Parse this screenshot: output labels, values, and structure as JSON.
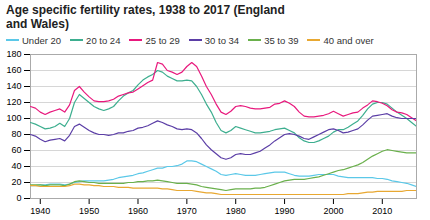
{
  "chart_data": {
    "type": "line",
    "title": "Age specific fertility rates, 1938 to 2017 (England\nand Wales)",
    "x": [
      1938,
      1939,
      1940,
      1941,
      1942,
      1943,
      1944,
      1945,
      1946,
      1947,
      1948,
      1949,
      1950,
      1951,
      1952,
      1953,
      1954,
      1955,
      1956,
      1957,
      1958,
      1959,
      1960,
      1961,
      1962,
      1963,
      1964,
      1965,
      1966,
      1967,
      1968,
      1969,
      1970,
      1971,
      1972,
      1973,
      1974,
      1975,
      1976,
      1977,
      1978,
      1979,
      1980,
      1981,
      1982,
      1983,
      1984,
      1985,
      1986,
      1987,
      1988,
      1989,
      1990,
      1991,
      1992,
      1993,
      1994,
      1995,
      1996,
      1997,
      1998,
      1999,
      2000,
      2001,
      2002,
      2003,
      2004,
      2005,
      2006,
      2007,
      2008,
      2009,
      2010,
      2011,
      2012,
      2013,
      2014,
      2015,
      2016,
      2017
    ],
    "series": [
      {
        "name": "Under 20",
        "color": "#5bc8e8",
        "values": [
          16,
          16,
          17,
          17,
          18,
          18,
          18,
          17,
          18,
          20,
          21,
          22,
          22,
          22,
          22,
          22,
          23,
          24,
          26,
          27,
          28,
          29,
          31,
          32,
          34,
          36,
          38,
          38,
          40,
          40,
          41,
          43,
          47,
          47,
          46,
          43,
          40,
          37,
          34,
          30,
          29,
          30,
          31,
          30,
          29,
          29,
          29,
          30,
          31,
          32,
          33,
          33,
          33,
          31,
          29,
          28,
          28,
          28,
          29,
          30,
          30,
          30,
          30,
          28,
          27,
          26,
          26,
          26,
          26,
          26,
          26,
          25,
          25,
          24,
          22,
          21,
          20,
          19,
          17,
          15
        ]
      },
      {
        "name": "20 to 24",
        "color": "#3dae8f",
        "values": [
          95,
          93,
          90,
          87,
          88,
          90,
          94,
          90,
          100,
          120,
          130,
          125,
          120,
          115,
          112,
          110,
          112,
          115,
          122,
          128,
          132,
          135,
          142,
          148,
          152,
          155,
          160,
          158,
          153,
          150,
          147,
          147,
          148,
          147,
          140,
          130,
          118,
          108,
          95,
          85,
          82,
          85,
          90,
          88,
          86,
          84,
          82,
          82,
          83,
          84,
          86,
          87,
          88,
          85,
          82,
          76,
          72,
          70,
          70,
          72,
          75,
          78,
          83,
          86,
          86,
          89,
          93,
          97,
          104,
          112,
          118,
          120,
          120,
          118,
          113,
          108,
          104,
          100,
          95,
          90
        ]
      },
      {
        "name": "25 to 29",
        "color": "#e8197d",
        "values": [
          115,
          113,
          108,
          105,
          108,
          110,
          112,
          108,
          117,
          135,
          140,
          133,
          127,
          122,
          121,
          121,
          122,
          124,
          128,
          130,
          132,
          133,
          137,
          141,
          145,
          148,
          170,
          168,
          160,
          158,
          155,
          158,
          165,
          170,
          165,
          153,
          140,
          130,
          118,
          108,
          105,
          109,
          115,
          116,
          115,
          113,
          112,
          112,
          113,
          114,
          118,
          119,
          122,
          119,
          115,
          108,
          103,
          102,
          102,
          103,
          104,
          106,
          109,
          106,
          103,
          105,
          107,
          108,
          113,
          117,
          122,
          121,
          119,
          116,
          111,
          108,
          107,
          105,
          101,
          97
        ]
      },
      {
        "name": "30 to 34",
        "color": "#5b3ea6",
        "values": [
          80,
          78,
          74,
          71,
          73,
          74,
          75,
          72,
          79,
          90,
          93,
          89,
          85,
          82,
          80,
          80,
          79,
          80,
          82,
          82,
          84,
          85,
          88,
          89,
          91,
          94,
          97,
          95,
          92,
          90,
          87,
          86,
          87,
          86,
          82,
          75,
          67,
          61,
          56,
          51,
          49,
          51,
          55,
          56,
          55,
          55,
          57,
          59,
          63,
          67,
          72,
          76,
          80,
          81,
          80,
          78,
          75,
          74,
          77,
          80,
          83,
          86,
          87,
          85,
          82,
          83,
          85,
          87,
          92,
          98,
          103,
          104,
          105,
          106,
          103,
          101,
          100,
          100,
          100,
          100
        ]
      },
      {
        "name": "35 to 39",
        "color": "#6ab04c",
        "values": [
          17,
          17,
          17,
          16,
          17,
          17,
          17,
          16,
          18,
          21,
          22,
          21,
          20,
          20,
          19,
          19,
          19,
          19,
          19,
          19,
          20,
          20,
          21,
          21,
          22,
          22,
          23,
          22,
          21,
          20,
          19,
          19,
          19,
          18,
          17,
          15,
          14,
          13,
          12,
          11,
          10,
          11,
          12,
          12,
          12,
          12,
          13,
          13,
          14,
          16,
          18,
          20,
          22,
          23,
          24,
          24,
          24,
          25,
          26,
          27,
          29,
          31,
          33,
          35,
          36,
          38,
          40,
          42,
          45,
          49,
          53,
          56,
          59,
          61,
          60,
          59,
          58,
          57,
          57,
          57
        ]
      },
      {
        "name": "40 and over",
        "color": "#e8a832",
        "values": [
          16,
          16,
          15,
          15,
          15,
          15,
          15,
          15,
          16,
          18,
          18,
          17,
          17,
          16,
          16,
          15,
          15,
          15,
          14,
          14,
          14,
          13,
          13,
          13,
          13,
          13,
          13,
          12,
          12,
          11,
          10,
          10,
          10,
          10,
          9,
          8,
          7,
          7,
          6,
          5,
          5,
          5,
          5,
          5,
          5,
          5,
          5,
          5,
          5,
          5,
          5,
          5,
          5,
          5,
          5,
          5,
          5,
          5,
          5,
          5,
          5,
          5,
          5,
          5,
          5,
          6,
          6,
          6,
          7,
          8,
          8,
          9,
          9,
          9,
          9,
          9,
          9,
          10,
          10,
          10
        ]
      }
    ],
    "xlim": [
      1938,
      2017
    ],
    "xticks": [
      1940,
      1950,
      1960,
      1970,
      1980,
      1990,
      2000,
      2010
    ],
    "ylim": [
      0,
      180
    ],
    "yticks": [
      0,
      20,
      40,
      60,
      80,
      100,
      120,
      140,
      160,
      180
    ],
    "grid": true,
    "legend": "top"
  }
}
